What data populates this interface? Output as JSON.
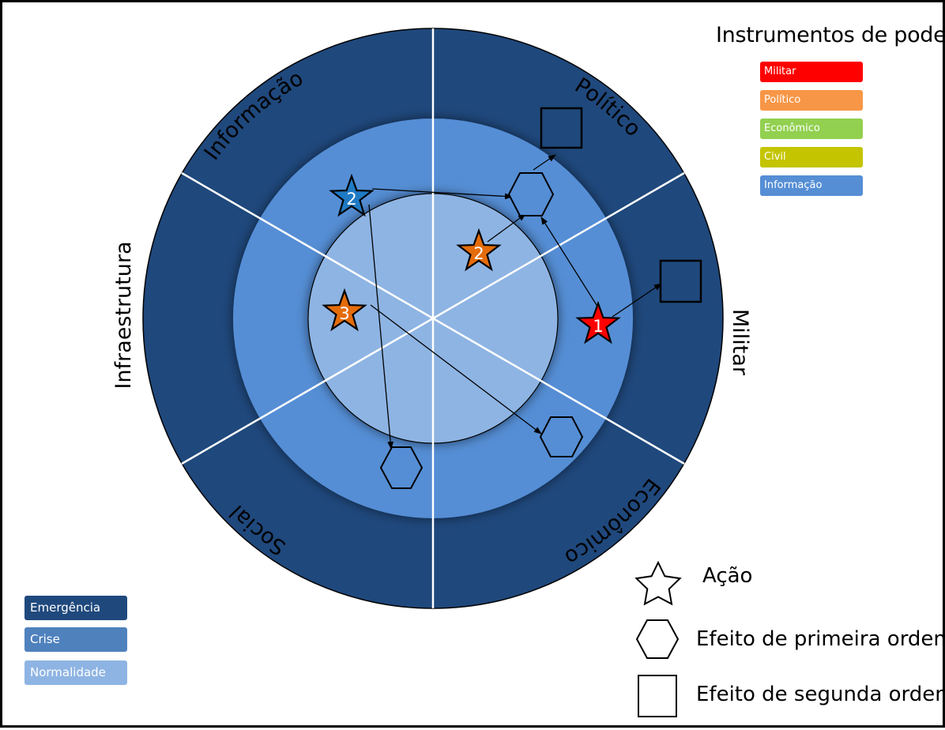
{
  "sectors": {
    "informacao": "Informação",
    "politico": "Político",
    "militar": "Militar",
    "economico": "Econômico",
    "social": "Social",
    "infraestrutura": "Infraestrutura"
  },
  "power_legend": {
    "title": "Instrumentos de poder",
    "items": [
      {
        "label": "Militar",
        "color": "#ff0000"
      },
      {
        "label": "Político",
        "color": "#f79646"
      },
      {
        "label": "Econômico",
        "color": "#92d050"
      },
      {
        "label": "Civil",
        "color": "#c4c400"
      },
      {
        "label": "Informação",
        "color": "#558ed5"
      }
    ]
  },
  "level_legend": {
    "items": [
      {
        "label": "Emergência",
        "color": "#1f497d"
      },
      {
        "label": "Crise",
        "color": "#4f81bd"
      },
      {
        "label": "Normalidade",
        "color": "#8eb4e3"
      }
    ]
  },
  "symbol_key": {
    "action": "Ação",
    "first_order": "Efeito de primeira ordem",
    "second_order": "Efeito de segunda ordem"
  },
  "actions": [
    {
      "number": "1",
      "instrument": "Militar",
      "color": "#ff0000"
    },
    {
      "number": "2",
      "instrument": "Político",
      "color": "#e46c0a"
    },
    {
      "number": "2",
      "instrument": "Informação",
      "color": "#1f7ac4"
    },
    {
      "number": "3",
      "instrument": "Político",
      "color": "#e46c0a"
    }
  ],
  "colors": {
    "emergencia": "#1f487c",
    "crise": "#558ed5",
    "normalidade": "#8eb4e3",
    "divider": "#ffffff"
  }
}
